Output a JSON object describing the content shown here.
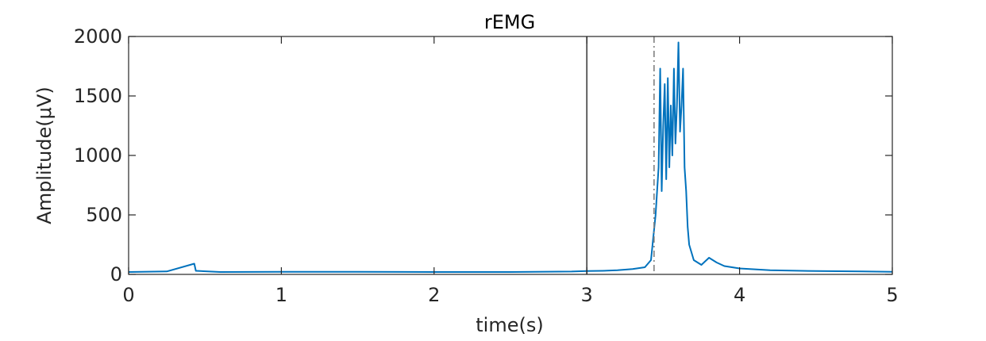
{
  "chart_data": {
    "type": "line",
    "title": "rEMG",
    "xlabel": "time(s)",
    "ylabel": "Amplitude(μV)",
    "xlim": [
      0,
      5
    ],
    "ylim": [
      0,
      2000
    ],
    "xticks": [
      0,
      1,
      2,
      3,
      4,
      5
    ],
    "xtick_labels": [
      "0",
      "1",
      "2",
      "3",
      "4",
      "5"
    ],
    "yticks": [
      0,
      500,
      1000,
      1500,
      2000
    ],
    "ytick_labels": [
      "0",
      "500",
      "1000",
      "1500",
      "2000"
    ],
    "grid": false,
    "legend": "none",
    "vertical_markers": [
      {
        "x": 3.0,
        "style": "solid",
        "color": "#404040"
      },
      {
        "x": 3.44,
        "style": "dash-dot",
        "color": "#808080"
      }
    ],
    "series": [
      {
        "color": "#0072BD",
        "x": [
          0.0,
          0.25,
          0.43,
          0.44,
          0.6,
          1.0,
          1.5,
          2.0,
          2.5,
          2.9,
          3.0,
          3.1,
          3.2,
          3.3,
          3.38,
          3.42,
          3.45,
          3.47,
          3.48,
          3.49,
          3.5,
          3.51,
          3.52,
          3.53,
          3.54,
          3.55,
          3.56,
          3.57,
          3.58,
          3.59,
          3.6,
          3.61,
          3.62,
          3.63,
          3.64,
          3.65,
          3.66,
          3.67,
          3.7,
          3.75,
          3.8,
          3.85,
          3.9,
          4.0,
          4.2,
          4.5,
          4.8,
          5.0
        ],
        "y": [
          20,
          25,
          90,
          30,
          20,
          22,
          22,
          20,
          20,
          24,
          28,
          30,
          35,
          45,
          60,
          120,
          500,
          900,
          1730,
          700,
          1250,
          1600,
          800,
          1650,
          900,
          1420,
          1000,
          1730,
          1100,
          1420,
          1950,
          1200,
          1420,
          1730,
          900,
          700,
          400,
          250,
          120,
          80,
          140,
          100,
          70,
          50,
          35,
          28,
          25,
          22
        ]
      }
    ]
  }
}
